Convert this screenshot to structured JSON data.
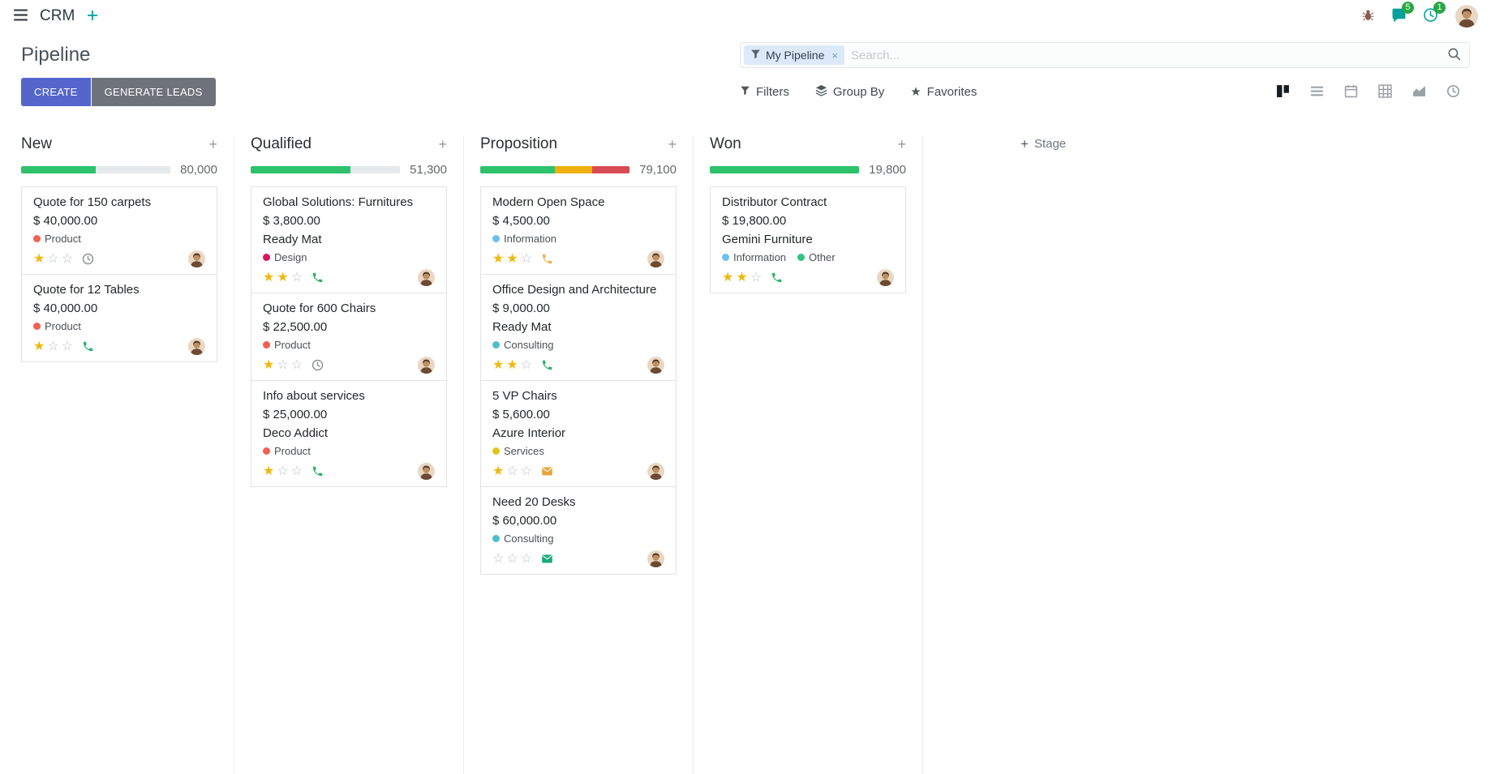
{
  "topbar": {
    "app_name": "CRM",
    "messages_badge": "5",
    "activities_badge": "1"
  },
  "control_panel": {
    "title": "Pipeline",
    "create_label": "CREATE",
    "generate_leads_label": "GENERATE LEADS",
    "filters_label": "Filters",
    "group_by_label": "Group By",
    "favorites_label": "Favorites",
    "search": {
      "facet_label": "My Pipeline",
      "remove_facet_glyph": "×",
      "placeholder": "Search..."
    },
    "view_switcher": {
      "active": "kanban",
      "views": [
        "kanban",
        "list",
        "calendar",
        "pivot",
        "graph",
        "activity"
      ]
    }
  },
  "colors": {
    "primary_button": "#5465cc",
    "secondary_button": "#6e737b",
    "progress_green": "#2dc26b",
    "progress_yellow": "#efaf0f",
    "progress_red": "#d94b52",
    "badge_green": "#28a745"
  },
  "icons": {
    "topbar": [
      "apps-menu-icon",
      "plus-icon",
      "bug-icon",
      "chat-icon",
      "clock-icon",
      "avatar"
    ],
    "search": [
      "funnel-icon",
      "close-icon",
      "magnifier-icon"
    ],
    "tools": [
      "funnel-icon",
      "layers-icon",
      "star-icon"
    ],
    "card_activities": [
      "clock-icon",
      "phone-icon",
      "envelope-icon"
    ]
  },
  "kanban": {
    "add_stage_label": "Stage",
    "add_column_glyph": "+",
    "columns": [
      {
        "name": "New",
        "counter": "80,000",
        "progress": [
          {
            "color": "#2dc26b",
            "pct": 50
          },
          {
            "color": "#e6e9ec",
            "pct": 50
          }
        ],
        "cards": [
          {
            "title": "Quote for 150 carpets",
            "amount": "$ 40,000.00",
            "partner": "",
            "tags": [
              {
                "label": "Product",
                "color": "#f06050"
              }
            ],
            "stars": 1,
            "activity": {
              "type": "clock",
              "color": "#8f9499"
            }
          },
          {
            "title": "Quote for 12 Tables",
            "amount": "$ 40,000.00",
            "partner": "",
            "tags": [
              {
                "label": "Product",
                "color": "#f06050"
              }
            ],
            "stars": 1,
            "activity": {
              "type": "phone",
              "color": "#28b463"
            }
          }
        ]
      },
      {
        "name": "Qualified",
        "counter": "51,300",
        "progress": [
          {
            "color": "#2dc26b",
            "pct": 67
          },
          {
            "color": "#e6e9ec",
            "pct": 33
          }
        ],
        "cards": [
          {
            "title": "Global Solutions: Furnitures",
            "amount": "$ 3,800.00",
            "partner": "Ready Mat",
            "tags": [
              {
                "label": "Design",
                "color": "#d6145f"
              }
            ],
            "stars": 2,
            "activity": {
              "type": "phone",
              "color": "#28b463"
            }
          },
          {
            "title": "Quote for 600 Chairs",
            "amount": "$ 22,500.00",
            "partner": "",
            "tags": [
              {
                "label": "Product",
                "color": "#f06050"
              }
            ],
            "stars": 1,
            "activity": {
              "type": "clock",
              "color": "#8f9499"
            }
          },
          {
            "title": "Info about services",
            "amount": "$ 25,000.00",
            "partner": "Deco Addict",
            "tags": [
              {
                "label": "Product",
                "color": "#f06050"
              }
            ],
            "stars": 1,
            "activity": {
              "type": "phone",
              "color": "#28b463"
            }
          }
        ]
      },
      {
        "name": "Proposition",
        "counter": "79,100",
        "progress": [
          {
            "color": "#2dc26b",
            "pct": 50
          },
          {
            "color": "#efaf0f",
            "pct": 25
          },
          {
            "color": "#d94b52",
            "pct": 25
          }
        ],
        "cards": [
          {
            "title": "Modern Open Space",
            "amount": "$ 4,500.00",
            "partner": "",
            "tags": [
              {
                "label": "Information",
                "color": "#6cc1ed"
              }
            ],
            "stars": 2,
            "activity": {
              "type": "phone",
              "color": "#f0ad4e"
            }
          },
          {
            "title": "Office Design and Architecture",
            "amount": "$ 9,000.00",
            "partner": "Ready Mat",
            "tags": [
              {
                "label": "Consulting",
                "color": "#4bc0c8"
              }
            ],
            "stars": 2,
            "activity": {
              "type": "phone",
              "color": "#28b463"
            }
          },
          {
            "title": "5 VP Chairs",
            "amount": "$ 5,600.00",
            "partner": "Azure Interior",
            "tags": [
              {
                "label": "Services",
                "color": "#e0c51c"
              }
            ],
            "stars": 1,
            "activity": {
              "type": "envelope",
              "color": "#e6a43e"
            }
          },
          {
            "title": "Need 20 Desks",
            "amount": "$ 60,000.00",
            "partner": "",
            "tags": [
              {
                "label": "Consulting",
                "color": "#4bc0c8"
              }
            ],
            "stars": 0,
            "activity": {
              "type": "envelope",
              "color": "#19a979"
            }
          }
        ]
      },
      {
        "name": "Won",
        "counter": "19,800",
        "progress": [
          {
            "color": "#2dc26b",
            "pct": 100
          }
        ],
        "cards": [
          {
            "title": "Distributor Contract",
            "amount": "$ 19,800.00",
            "partner": "Gemini Furniture",
            "tags": [
              {
                "label": "Information",
                "color": "#6cc1ed"
              },
              {
                "label": "Other",
                "color": "#30c381"
              }
            ],
            "stars": 2,
            "activity": {
              "type": "phone",
              "color": "#28b463"
            }
          }
        ]
      }
    ]
  }
}
